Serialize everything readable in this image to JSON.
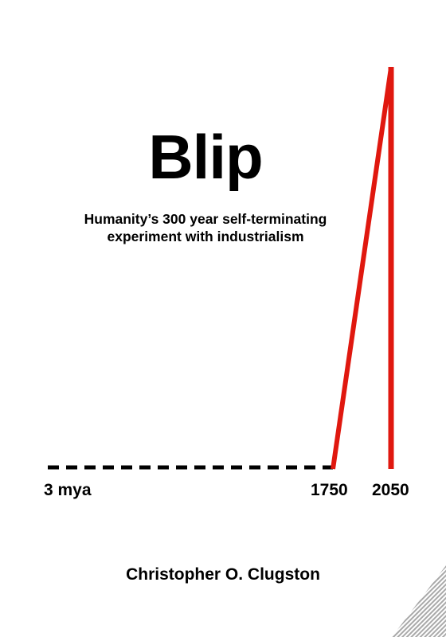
{
  "cover": {
    "title": "Blip",
    "subtitle_line1": "Humanity’s 300 year self-terminating",
    "subtitle_line2": "experiment with industrialism",
    "author": "Christopher O. Clugston"
  },
  "timeline": {
    "labels": [
      "3 mya",
      "1750",
      "2050"
    ],
    "line_color": "#e0180f",
    "baseline_color": "#000000",
    "baseline_style": "dashed"
  },
  "watermark": {
    "icon": "hatched-corner-watermark"
  }
}
